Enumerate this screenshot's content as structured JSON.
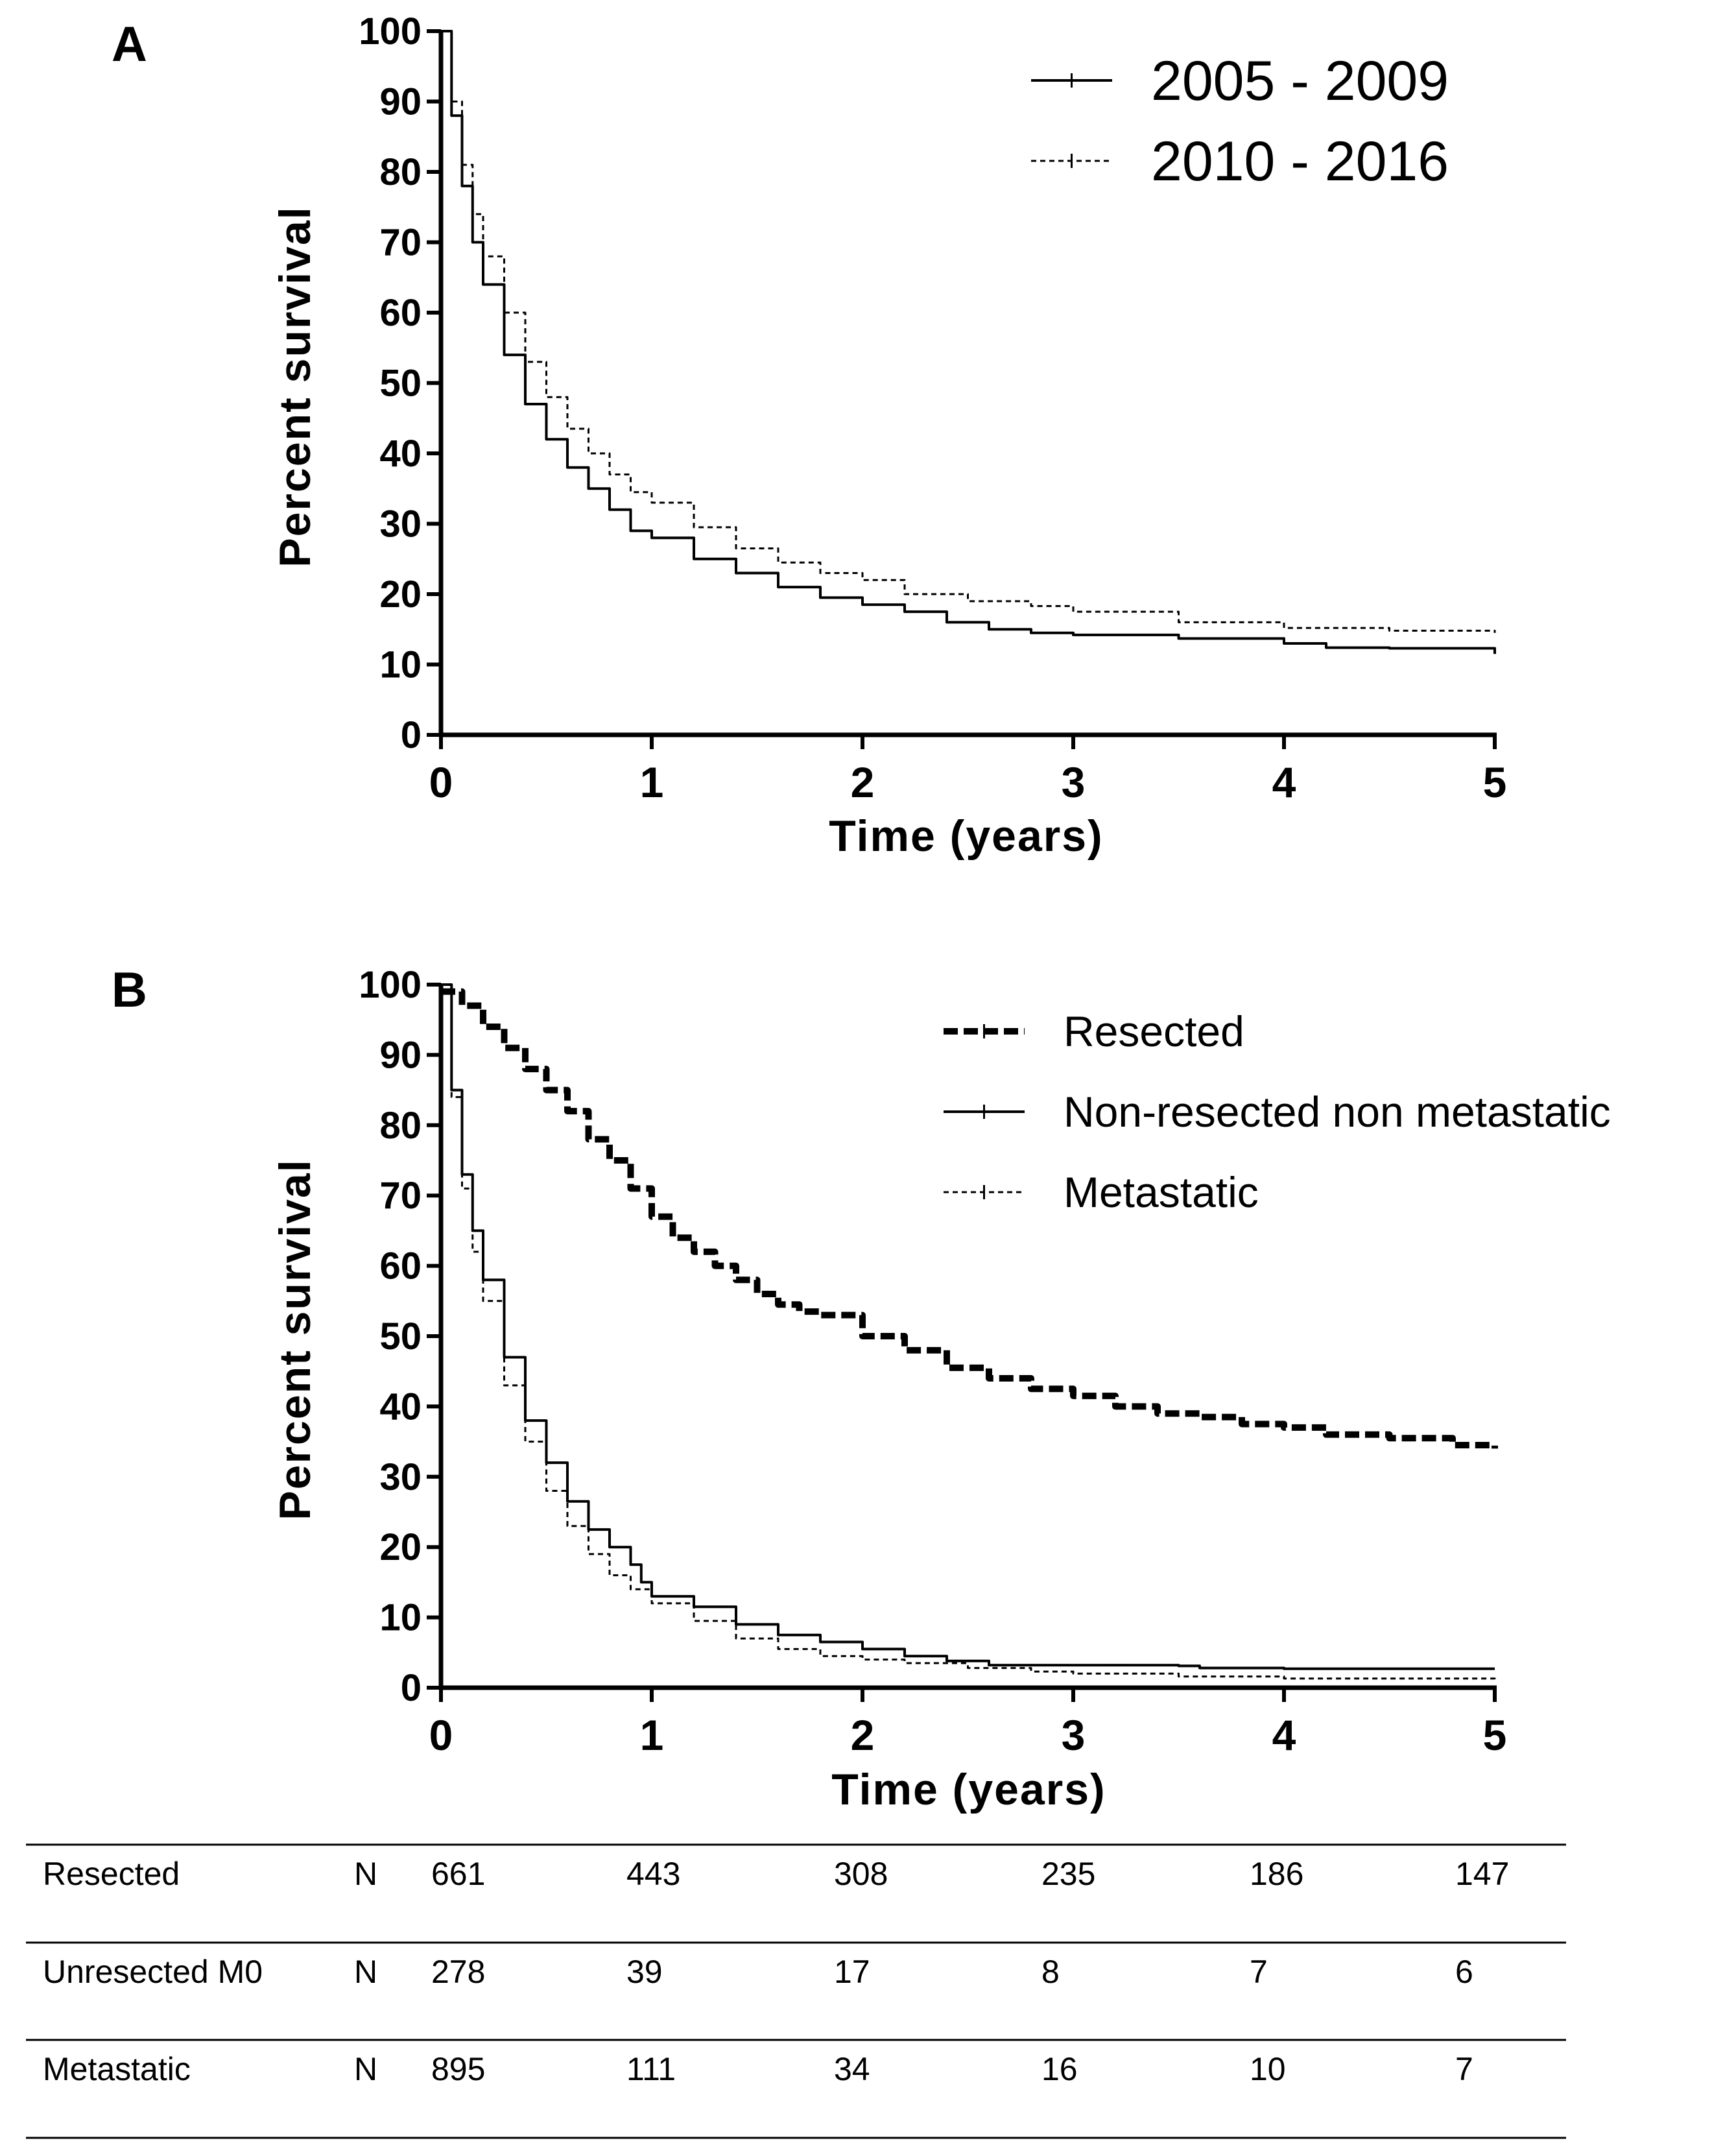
{
  "chart_data": [
    {
      "type": "line",
      "panel_label": "A",
      "xlabel": "Time (years)",
      "ylabel": "Percent survival",
      "xlim": [
        0,
        5
      ],
      "ylim": [
        0,
        100
      ],
      "x_ticks": [
        "0",
        "1",
        "2",
        "3",
        "4",
        "5"
      ],
      "y_ticks": [
        "0",
        "10",
        "20",
        "30",
        "40",
        "50",
        "60",
        "70",
        "80",
        "90",
        "100"
      ],
      "legend_position": "top-right",
      "series": [
        {
          "name": "2005 - 2009",
          "style": "solid",
          "x": [
            0,
            0.05,
            0.1,
            0.15,
            0.2,
            0.3,
            0.4,
            0.5,
            0.6,
            0.7,
            0.8,
            0.9,
            1.0,
            1.2,
            1.4,
            1.6,
            1.8,
            2.0,
            2.2,
            2.4,
            2.6,
            2.8,
            3.0,
            3.5,
            4.0,
            4.2,
            4.5,
            5.0
          ],
          "y": [
            100,
            88,
            78,
            70,
            64,
            54,
            47,
            42,
            38,
            35,
            32,
            29,
            28,
            25,
            23,
            21,
            19.5,
            18.5,
            17.5,
            16,
            15,
            14.5,
            14.2,
            13.7,
            13,
            12.4,
            12.3,
            11.5
          ]
        },
        {
          "name": "2010 - 2016",
          "style": "dashed",
          "x": [
            0,
            0.05,
            0.1,
            0.15,
            0.2,
            0.3,
            0.4,
            0.5,
            0.6,
            0.7,
            0.8,
            0.9,
            1.0,
            1.2,
            1.4,
            1.6,
            1.8,
            2.0,
            2.2,
            2.5,
            2.8,
            3.0,
            3.5,
            4.0,
            4.5,
            5.0
          ],
          "y": [
            100,
            90,
            81,
            74,
            68,
            60,
            53,
            48,
            43.5,
            40,
            37,
            34.5,
            33,
            29.5,
            26.5,
            24.5,
            23,
            22,
            20,
            19,
            18.3,
            17.5,
            16,
            15.2,
            14.8,
            14.5
          ]
        }
      ]
    },
    {
      "type": "line",
      "panel_label": "B",
      "xlabel": "Time (years)",
      "ylabel": "Percent survival",
      "xlim": [
        0,
        5
      ],
      "ylim": [
        0,
        100
      ],
      "x_ticks": [
        "0",
        "1",
        "2",
        "3",
        "4",
        "5"
      ],
      "y_ticks": [
        "0",
        "10",
        "20",
        "30",
        "40",
        "50",
        "60",
        "70",
        "80",
        "90",
        "100"
      ],
      "legend_position": "top-right",
      "series": [
        {
          "name": "Resected",
          "style": "thick-dashed",
          "x": [
            0,
            0.1,
            0.2,
            0.3,
            0.4,
            0.5,
            0.6,
            0.7,
            0.8,
            0.9,
            1.0,
            1.1,
            1.2,
            1.3,
            1.4,
            1.5,
            1.6,
            1.7,
            1.8,
            2.0,
            2.2,
            2.4,
            2.6,
            2.8,
            3.0,
            3.2,
            3.4,
            3.6,
            3.8,
            4.0,
            4.2,
            4.5,
            4.8,
            5.0
          ],
          "y": [
            99,
            97,
            94,
            91,
            88,
            85,
            82,
            78,
            75,
            71,
            67,
            64,
            62,
            60,
            58,
            56,
            54.5,
            53.5,
            53,
            50,
            48,
            45.5,
            44,
            42.5,
            41.5,
            40,
            39,
            38.5,
            37.5,
            37,
            36,
            35.5,
            34.5,
            34
          ]
        },
        {
          "name": "Non-resected non metastatic",
          "style": "solid",
          "x": [
            0,
            0.05,
            0.1,
            0.15,
            0.2,
            0.3,
            0.4,
            0.5,
            0.6,
            0.7,
            0.8,
            0.9,
            0.95,
            1.0,
            1.2,
            1.4,
            1.6,
            1.8,
            2.0,
            2.2,
            2.4,
            2.6,
            3.0,
            3.5,
            3.6,
            4.0,
            5.0
          ],
          "y": [
            100,
            85,
            73,
            65,
            58,
            47,
            38,
            32,
            26.5,
            22.5,
            20,
            17.5,
            15,
            13,
            11.5,
            9,
            7.5,
            6.5,
            5.5,
            4.5,
            3.8,
            3.2,
            3.2,
            3.1,
            2.8,
            2.7,
            2.7
          ]
        },
        {
          "name": "Metastatic",
          "style": "dashed",
          "x": [
            0,
            0.05,
            0.1,
            0.15,
            0.2,
            0.3,
            0.4,
            0.5,
            0.6,
            0.7,
            0.8,
            0.9,
            1.0,
            1.2,
            1.4,
            1.6,
            1.8,
            2.0,
            2.2,
            2.5,
            2.8,
            3.0,
            3.5,
            4.0,
            5.0
          ],
          "y": [
            100,
            84,
            71,
            62,
            55,
            43,
            35,
            28,
            23,
            19,
            16,
            14,
            12,
            9.5,
            7,
            5.5,
            4.5,
            4,
            3.5,
            2.8,
            2.3,
            2,
            1.6,
            1.3,
            1.2
          ]
        }
      ]
    }
  ],
  "risk_table": {
    "rows": [
      {
        "label": "Resected",
        "n_label": "N",
        "values": [
          "661",
          "443",
          "308",
          "235",
          "186",
          "147"
        ]
      },
      {
        "label": "Unresected M0",
        "n_label": "N",
        "values": [
          "278",
          "39",
          "17",
          "8",
          "7",
          "6"
        ]
      },
      {
        "label": "Metastatic",
        "n_label": "N",
        "values": [
          "895",
          "111",
          "34",
          "16",
          "10",
          "7"
        ]
      }
    ]
  }
}
